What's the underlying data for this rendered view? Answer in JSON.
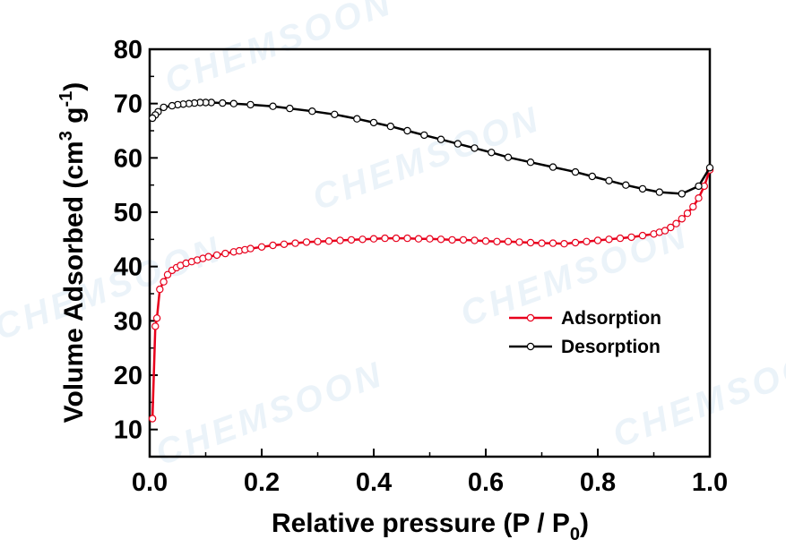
{
  "watermark": "CHEMSOON",
  "chart_data": {
    "type": "line",
    "title": "",
    "xlabel": "Relative pressure (P / P",
    "xlabel_sub": "0",
    "xlabel_tail": ")",
    "ylabel": "Volume Adsorbed (cm",
    "ylabel_sup1": "3",
    "ylabel_mid": " g",
    "ylabel_sup2": "-1",
    "ylabel_tail": ")",
    "xlim": [
      0.0,
      1.0
    ],
    "ylim": [
      5,
      80
    ],
    "xticks": [
      "0.0",
      "0.2",
      "0.4",
      "0.6",
      "0.8",
      "1.0"
    ],
    "yticks": [
      "10",
      "20",
      "30",
      "40",
      "50",
      "60",
      "70",
      "80"
    ],
    "grid": false,
    "legend_position": "center-right",
    "series": [
      {
        "name": "Adsorption",
        "color": "#e8001c",
        "marker": "open-circle",
        "x": [
          0.005,
          0.01,
          0.013,
          0.018,
          0.025,
          0.032,
          0.04,
          0.048,
          0.055,
          0.065,
          0.075,
          0.085,
          0.095,
          0.105,
          0.12,
          0.135,
          0.15,
          0.16,
          0.17,
          0.18,
          0.2,
          0.22,
          0.24,
          0.26,
          0.28,
          0.3,
          0.32,
          0.34,
          0.36,
          0.38,
          0.4,
          0.42,
          0.44,
          0.46,
          0.48,
          0.5,
          0.52,
          0.54,
          0.56,
          0.58,
          0.6,
          0.62,
          0.64,
          0.66,
          0.68,
          0.7,
          0.72,
          0.74,
          0.76,
          0.78,
          0.8,
          0.82,
          0.84,
          0.86,
          0.88,
          0.9,
          0.91,
          0.92,
          0.93,
          0.94,
          0.95,
          0.96,
          0.97,
          0.98,
          0.99,
          1.0
        ],
        "y": [
          12.0,
          29.0,
          30.5,
          35.8,
          37.2,
          38.5,
          39.3,
          39.8,
          40.2,
          40.6,
          40.9,
          41.2,
          41.5,
          41.8,
          42.1,
          42.4,
          42.7,
          42.9,
          43.1,
          43.3,
          43.6,
          43.9,
          44.1,
          44.3,
          44.5,
          44.6,
          44.7,
          44.8,
          44.9,
          45.0,
          45.1,
          45.2,
          45.2,
          45.2,
          45.1,
          45.1,
          45.0,
          44.9,
          44.9,
          44.8,
          44.7,
          44.6,
          44.6,
          44.5,
          44.4,
          44.3,
          44.3,
          44.2,
          44.4,
          44.6,
          44.8,
          45.0,
          45.2,
          45.4,
          45.7,
          46.0,
          46.3,
          46.6,
          47.2,
          47.9,
          48.8,
          49.8,
          51.0,
          52.6,
          54.8,
          57.8
        ]
      },
      {
        "name": "Desorption",
        "color": "#000000",
        "marker": "open-circle",
        "x": [
          1.0,
          0.98,
          0.95,
          0.91,
          0.88,
          0.85,
          0.82,
          0.79,
          0.76,
          0.72,
          0.68,
          0.64,
          0.61,
          0.58,
          0.55,
          0.52,
          0.49,
          0.46,
          0.43,
          0.4,
          0.37,
          0.33,
          0.29,
          0.25,
          0.22,
          0.18,
          0.15,
          0.13,
          0.11,
          0.1,
          0.09,
          0.08,
          0.07,
          0.06,
          0.05,
          0.04,
          0.025,
          0.015,
          0.01,
          0.005
        ],
        "y": [
          58.2,
          54.8,
          53.4,
          53.7,
          54.3,
          55.0,
          55.8,
          56.6,
          57.4,
          58.3,
          59.2,
          60.1,
          61.0,
          61.8,
          62.6,
          63.4,
          64.2,
          65.0,
          65.8,
          66.5,
          67.2,
          68.0,
          68.6,
          69.1,
          69.5,
          69.8,
          70.0,
          70.1,
          70.2,
          70.2,
          70.2,
          70.1,
          70.0,
          69.9,
          69.8,
          69.6,
          69.3,
          68.5,
          67.9,
          67.3
        ]
      }
    ]
  }
}
